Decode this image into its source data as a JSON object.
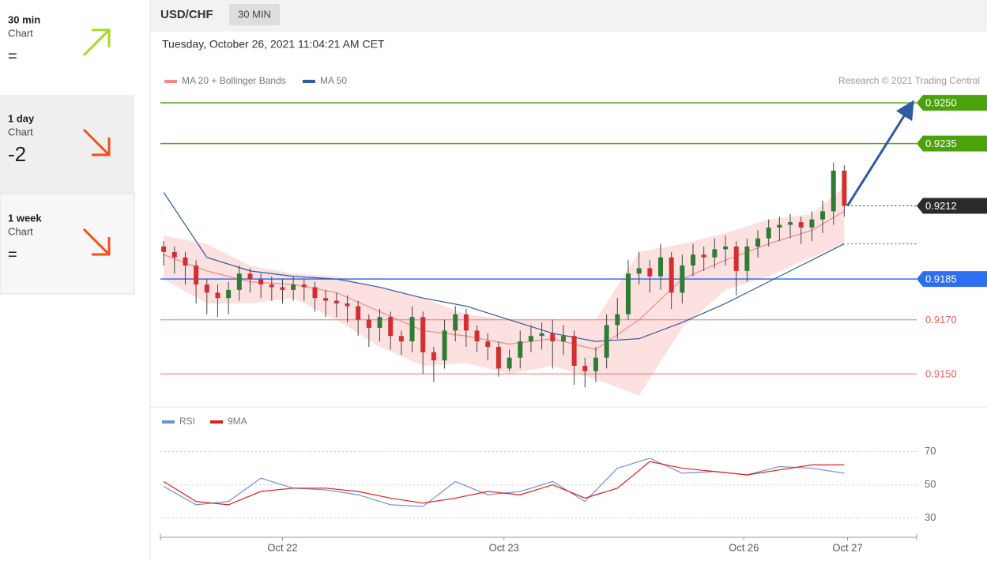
{
  "sidebar": [
    {
      "period": "30 min",
      "label": "Chart",
      "score": "="
    },
    {
      "period": "1 day",
      "label": "Chart",
      "score": "-2"
    },
    {
      "period": "1 week",
      "label": "Chart",
      "score": "="
    }
  ],
  "header": {
    "symbol": "USD/CHF",
    "interval": "30 MIN",
    "timestamp": "Tuesday, October 26, 2021 11:04:21 AM CET",
    "credit": "Research © 2021 Trading Central"
  },
  "chart_data": [
    {
      "type": "candlestick",
      "up_color": "#2e7d32",
      "down_color": "#d32f2f",
      "open": [
        0.9197,
        0.9195,
        0.9193,
        0.919,
        0.9183,
        0.918,
        0.9178,
        0.9181,
        0.9187,
        0.9185,
        0.9183,
        0.9182,
        0.9181,
        0.9183,
        0.9182,
        0.9178,
        0.9177,
        0.9176,
        0.9175,
        0.917,
        0.9167,
        0.9171,
        0.9164,
        0.9162,
        0.9171,
        0.9158,
        0.9155,
        0.9166,
        0.9172,
        0.9166,
        0.9162,
        0.916,
        0.9152,
        0.9156,
        0.9162,
        0.9164,
        0.9165,
        0.9162,
        0.9164,
        0.9153,
        0.9151,
        0.9156,
        0.9168,
        0.9172,
        0.9187,
        0.9189,
        0.9186,
        0.9193,
        0.918,
        0.919,
        0.9194,
        0.9193,
        0.9196,
        0.9197,
        0.9188,
        0.9197,
        0.92,
        0.9204,
        0.9205,
        0.9206,
        0.9204,
        0.9207,
        0.921,
        0.9225
      ],
      "high": [
        0.9199,
        0.9197,
        0.9195,
        0.9192,
        0.9185,
        0.9183,
        0.9184,
        0.919,
        0.9189,
        0.9187,
        0.9186,
        0.9185,
        0.9186,
        0.9185,
        0.9184,
        0.9181,
        0.918,
        0.9179,
        0.9177,
        0.9172,
        0.9174,
        0.9173,
        0.9166,
        0.9175,
        0.9173,
        0.916,
        0.917,
        0.9175,
        0.9174,
        0.9168,
        0.9165,
        0.9162,
        0.9159,
        0.9166,
        0.9168,
        0.9169,
        0.917,
        0.9168,
        0.9166,
        0.9156,
        0.916,
        0.9172,
        0.9178,
        0.9192,
        0.9195,
        0.9192,
        0.9198,
        0.9195,
        0.9194,
        0.9198,
        0.9197,
        0.92,
        0.9201,
        0.9199,
        0.92,
        0.9203,
        0.9207,
        0.9208,
        0.9209,
        0.9208,
        0.921,
        0.9214,
        0.9228,
        0.9227
      ],
      "low": [
        0.919,
        0.9187,
        0.9183,
        0.9176,
        0.9172,
        0.9171,
        0.9172,
        0.9177,
        0.918,
        0.9178,
        0.9177,
        0.9176,
        0.9177,
        0.9177,
        0.9173,
        0.9171,
        0.9171,
        0.9169,
        0.9164,
        0.916,
        0.9162,
        0.9159,
        0.9157,
        0.9158,
        0.915,
        0.9147,
        0.9152,
        0.9162,
        0.916,
        0.9158,
        0.9155,
        0.9149,
        0.9151,
        0.9152,
        0.9158,
        0.9159,
        0.9152,
        0.9157,
        0.9146,
        0.9145,
        0.9147,
        0.9152,
        0.9163,
        0.917,
        0.9183,
        0.918,
        0.9181,
        0.9174,
        0.9176,
        0.9186,
        0.9188,
        0.9189,
        0.919,
        0.9179,
        0.9184,
        0.9193,
        0.9197,
        0.9199,
        0.92,
        0.9198,
        0.9199,
        0.9202,
        0.9205,
        0.9208
      ],
      "close": [
        0.9195,
        0.9193,
        0.919,
        0.9183,
        0.918,
        0.9178,
        0.9181,
        0.9187,
        0.9185,
        0.9183,
        0.9182,
        0.9181,
        0.9183,
        0.9182,
        0.9178,
        0.9177,
        0.9176,
        0.9175,
        0.917,
        0.9167,
        0.9171,
        0.9164,
        0.9162,
        0.9171,
        0.9158,
        0.9155,
        0.9166,
        0.9172,
        0.9166,
        0.9162,
        0.916,
        0.9152,
        0.9156,
        0.9162,
        0.9164,
        0.9165,
        0.9162,
        0.9164,
        0.9153,
        0.9151,
        0.9156,
        0.9168,
        0.9172,
        0.9187,
        0.9189,
        0.9186,
        0.9193,
        0.918,
        0.919,
        0.9194,
        0.9193,
        0.9196,
        0.9197,
        0.9188,
        0.9197,
        0.92,
        0.9204,
        0.9205,
        0.9206,
        0.9204,
        0.9207,
        0.921,
        0.9225,
        0.9212
      ],
      "overlay_x": [
        0,
        4,
        8,
        12,
        16,
        20,
        24,
        28,
        32,
        36,
        40,
        44,
        48,
        52,
        56,
        60,
        63
      ],
      "series": [
        {
          "name": "MA 20 + Bollinger Bands",
          "color": "#f28a8a",
          "values": [
            0.9194,
            0.9188,
            0.9184,
            0.9183,
            0.918,
            0.9173,
            0.9166,
            0.9164,
            0.9161,
            0.9163,
            0.9159,
            0.917,
            0.9185,
            0.9192,
            0.9198,
            0.9203,
            0.921
          ]
        },
        {
          "name": "MA 50",
          "color": "#2f5ba0",
          "values": [
            0.9217,
            0.9193,
            0.9188,
            0.9186,
            0.9185,
            0.9182,
            0.9178,
            0.9175,
            0.917,
            0.9165,
            0.9162,
            0.9163,
            0.9169,
            0.9176,
            0.9184,
            0.9192,
            0.9198
          ]
        }
      ],
      "band_color": "#fde1e1",
      "band_upper": [
        0.9201,
        0.9198,
        0.919,
        0.9187,
        0.9186,
        0.9182,
        0.9178,
        0.9172,
        0.917,
        0.917,
        0.917,
        0.9195,
        0.9198,
        0.9202,
        0.9207,
        0.9209,
        0.9219
      ],
      "band_lower": [
        0.9185,
        0.9176,
        0.9176,
        0.9178,
        0.917,
        0.916,
        0.9153,
        0.9154,
        0.915,
        0.9153,
        0.9148,
        0.9142,
        0.9167,
        0.9181,
        0.9186,
        0.9193,
        0.9198
      ],
      "levels": [
        {
          "value": 0.925,
          "label": "0.9250",
          "color": "#4ca20a",
          "box": true,
          "line": "solid"
        },
        {
          "value": 0.9235,
          "color": "#4ca20a",
          "box": true,
          "line": "solid"
        },
        {
          "value": 0.9212,
          "color": "#2b2b2b",
          "box": true,
          "line": "dotted"
        },
        {
          "value": 0.9185,
          "color": "#2e6ff2",
          "box": true,
          "line": "solid"
        },
        {
          "value": 0.917,
          "label": "0.9170",
          "color": "#f06060",
          "box": false,
          "line": "solid"
        },
        {
          "value": 0.915,
          "label": "0.9150",
          "color": "#f06060",
          "box": false,
          "line": "solid"
        }
      ],
      "xlim": [
        -0.3,
        69.7
      ],
      "ylim": [
        0.9139,
        0.9255
      ]
    },
    {
      "type": "line",
      "x": [
        0,
        3,
        6,
        9,
        12,
        15,
        18,
        21,
        24,
        27,
        30,
        33,
        36,
        39,
        42,
        45,
        48,
        51,
        54,
        57,
        60,
        63
      ],
      "series": [
        {
          "name": "RSI",
          "color": "#6f8fe0",
          "values": [
            49,
            38,
            40,
            54,
            48,
            47,
            44,
            38,
            37,
            52,
            44,
            46,
            52,
            40,
            60,
            66,
            57,
            58,
            56,
            61,
            60,
            57
          ]
        },
        {
          "name": "9MA",
          "color": "#e0201b",
          "values": [
            52,
            40,
            38,
            46,
            48,
            48,
            46,
            42,
            39,
            42,
            46,
            44,
            50,
            42,
            48,
            64,
            60,
            58,
            56,
            59,
            62,
            62
          ]
        }
      ],
      "xlim": [
        -0.3,
        69.7
      ],
      "ylim": [
        17,
        85
      ],
      "yticks": [
        30,
        50,
        70
      ],
      "grid": true,
      "xticks": [
        {
          "value": 11,
          "label": "Oct 22"
        },
        {
          "value": 31.5,
          "label": "Oct 23"
        },
        {
          "value": 53.7,
          "label": "Oct 26"
        },
        {
          "value": 63.3,
          "label": "Oct 27"
        }
      ]
    }
  ]
}
